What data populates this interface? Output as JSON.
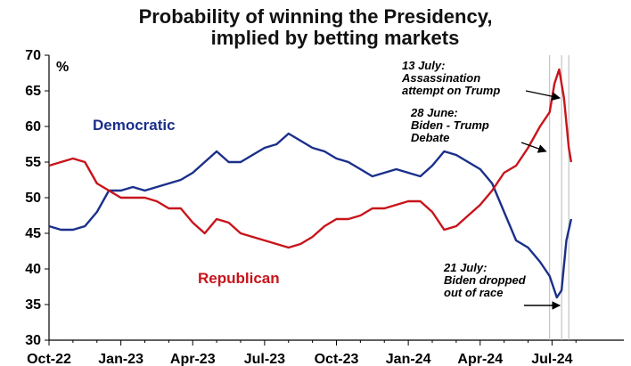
{
  "chart_data": {
    "type": "line",
    "title": "Probability of winning the Presidency,",
    "subtitle": "implied by betting markets",
    "ylabel": "%",
    "ylim": [
      30,
      70
    ],
    "y_ticks": [
      "30",
      "35",
      "40",
      "45",
      "50",
      "55",
      "60",
      "65",
      "70"
    ],
    "x_tick_labels": [
      "Oct-22",
      "Jan-23",
      "Apr-23",
      "Jul-23",
      "Oct-23",
      "Jan-24",
      "Apr-24",
      "Jul-24"
    ],
    "grid": false,
    "colors": {
      "democratic": "#1a2f8a",
      "republican": "#c8141b",
      "marker_line": "#b8b8b8"
    },
    "event_lines_months": [
      20.9,
      21.4,
      21.7
    ],
    "series": [
      {
        "name": "Democratic",
        "color": "#1a2f8a",
        "points": [
          [
            0,
            46
          ],
          [
            0.5,
            45.5
          ],
          [
            1,
            45.5
          ],
          [
            1.5,
            46
          ],
          [
            2,
            48
          ],
          [
            2.5,
            51
          ],
          [
            3,
            51
          ],
          [
            3.5,
            51.5
          ],
          [
            4,
            51
          ],
          [
            4.5,
            51.5
          ],
          [
            5,
            52
          ],
          [
            5.5,
            52.5
          ],
          [
            6,
            53.5
          ],
          [
            6.5,
            55
          ],
          [
            7,
            56.5
          ],
          [
            7.5,
            55
          ],
          [
            8,
            55
          ],
          [
            8.5,
            56
          ],
          [
            9,
            57
          ],
          [
            9.5,
            57.5
          ],
          [
            10,
            59
          ],
          [
            10.5,
            58
          ],
          [
            11,
            57
          ],
          [
            11.5,
            56.5
          ],
          [
            12,
            55.5
          ],
          [
            12.5,
            55
          ],
          [
            13,
            54
          ],
          [
            13.5,
            53
          ],
          [
            14,
            53.5
          ],
          [
            14.5,
            54
          ],
          [
            15,
            53.5
          ],
          [
            15.5,
            53
          ],
          [
            16,
            54.5
          ],
          [
            16.5,
            56.5
          ],
          [
            17,
            56
          ],
          [
            17.5,
            55
          ],
          [
            18,
            54
          ],
          [
            18.5,
            52
          ],
          [
            19,
            48
          ],
          [
            19.5,
            44
          ],
          [
            20,
            43
          ],
          [
            20.5,
            41
          ],
          [
            20.9,
            39
          ],
          [
            21.2,
            36
          ],
          [
            21.4,
            37
          ],
          [
            21.6,
            44
          ],
          [
            21.8,
            47
          ]
        ]
      },
      {
        "name": "Republican",
        "color": "#c8141b",
        "points": [
          [
            0,
            54.5
          ],
          [
            0.5,
            55
          ],
          [
            1,
            55.5
          ],
          [
            1.5,
            55
          ],
          [
            2,
            52
          ],
          [
            2.5,
            51
          ],
          [
            3,
            50
          ],
          [
            3.5,
            50
          ],
          [
            4,
            50
          ],
          [
            4.5,
            49.5
          ],
          [
            5,
            48.5
          ],
          [
            5.5,
            48.5
          ],
          [
            6,
            46.5
          ],
          [
            6.5,
            45
          ],
          [
            7,
            47
          ],
          [
            7.5,
            46.5
          ],
          [
            8,
            45
          ],
          [
            8.5,
            44.5
          ],
          [
            9,
            44
          ],
          [
            9.5,
            43.5
          ],
          [
            10,
            43
          ],
          [
            10.5,
            43.5
          ],
          [
            11,
            44.5
          ],
          [
            11.5,
            46
          ],
          [
            12,
            47
          ],
          [
            12.5,
            47
          ],
          [
            13,
            47.5
          ],
          [
            13.5,
            48.5
          ],
          [
            14,
            48.5
          ],
          [
            14.5,
            49
          ],
          [
            15,
            49.5
          ],
          [
            15.5,
            49.5
          ],
          [
            16,
            48
          ],
          [
            16.5,
            45.5
          ],
          [
            17,
            46
          ],
          [
            17.5,
            47.5
          ],
          [
            18,
            49
          ],
          [
            18.5,
            51
          ],
          [
            19,
            53.5
          ],
          [
            19.5,
            54.5
          ],
          [
            20,
            57
          ],
          [
            20.5,
            60
          ],
          [
            20.9,
            62
          ],
          [
            21.1,
            66
          ],
          [
            21.3,
            68
          ],
          [
            21.5,
            64
          ],
          [
            21.7,
            57
          ],
          [
            21.8,
            55
          ]
        ]
      }
    ],
    "annotations": [
      {
        "lines": [
          "13 July:",
          "Assassination",
          "attempt on Trump"
        ]
      },
      {
        "lines": [
          "28 June:",
          "Biden - Trump",
          "Debate"
        ]
      },
      {
        "lines": [
          "21 July:",
          "Biden dropped",
          "out of race"
        ]
      }
    ]
  }
}
